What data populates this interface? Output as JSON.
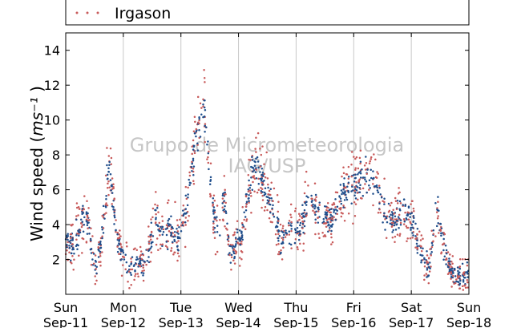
{
  "chart_data": {
    "type": "scatter",
    "title": "",
    "ylabel": "Wind speed",
    "ylabel_unit": "ms⁻¹",
    "xlabel": "",
    "ylim": [
      0,
      15
    ],
    "xlim_days": [
      0,
      7
    ],
    "yticks": [
      2,
      4,
      6,
      8,
      10,
      12,
      14
    ],
    "xticks": [
      {
        "day": "Sun",
        "date": "Sep-11"
      },
      {
        "day": "Mon",
        "date": "Sep-12"
      },
      {
        "day": "Tue",
        "date": "Sep-13"
      },
      {
        "day": "Wed",
        "date": "Sep-14"
      },
      {
        "day": "Thu",
        "date": "Sep-15"
      },
      {
        "day": "Fri",
        "date": "Sep-16"
      },
      {
        "day": "Sat",
        "date": "Sep-17"
      },
      {
        "day": "Sun",
        "date": "Sep-18"
      }
    ],
    "grid": "vertical",
    "legend_placement": "top",
    "watermark": [
      "Grupo de Micrometeorologia",
      "IAG/USP"
    ],
    "series": [
      {
        "name": "Irgason",
        "color": "#c85a5a",
        "marker": "dot"
      },
      {
        "name": "",
        "color": "#1f4e8c",
        "marker": "dot"
      }
    ],
    "profile_x": [
      0,
      0.1,
      0.2,
      0.3,
      0.4,
      0.5,
      0.6,
      0.75,
      0.9,
      1.0,
      1.1,
      1.25,
      1.4,
      1.55,
      1.65,
      1.8,
      1.95,
      2.1,
      2.25,
      2.4,
      2.45,
      2.55,
      2.65,
      2.75,
      2.85,
      2.95,
      3.05,
      3.15,
      3.3,
      3.45,
      3.6,
      3.75,
      3.85,
      3.95,
      4.05,
      4.2,
      4.35,
      4.5,
      4.6,
      4.75,
      4.9,
      5.05,
      5.2,
      5.35,
      5.5,
      5.65,
      5.8,
      5.95,
      6.05,
      6.15,
      6.3,
      6.45,
      6.55,
      6.7,
      6.85,
      7.0
    ],
    "profile_y": [
      3.0,
      2.8,
      3.5,
      4.5,
      4.0,
      1.2,
      2.5,
      7.5,
      3.0,
      2.0,
      1.5,
      2.0,
      1.8,
      4.5,
      3.5,
      3.8,
      3.0,
      5.0,
      9.0,
      10.5,
      9.0,
      5.0,
      3.5,
      5.5,
      2.0,
      3.0,
      3.0,
      5.5,
      7.5,
      6.0,
      5.0,
      3.0,
      3.5,
      4.0,
      3.5,
      5.5,
      5.0,
      4.5,
      4.0,
      5.5,
      6.0,
      6.5,
      7.0,
      6.5,
      5.0,
      4.0,
      4.5,
      4.5,
      4.0,
      2.5,
      1.5,
      5.0,
      3.0,
      1.2,
      1.0,
      1.2
    ],
    "n_points": 900
  }
}
